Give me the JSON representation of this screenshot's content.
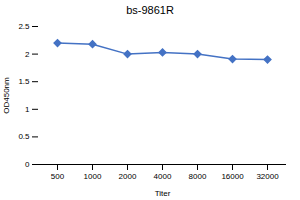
{
  "chart_data": {
    "type": "line",
    "title": "bs-9861R",
    "x_label": "Titer",
    "y_label": "OD450nm",
    "categories": [
      "500",
      "1000",
      "2000",
      "4000",
      "8000",
      "16000",
      "32000"
    ],
    "values": [
      2.2,
      2.18,
      2.0,
      2.03,
      2.0,
      1.91,
      1.9
    ],
    "color": "#4472c4",
    "marker": "diamond",
    "ylim": [
      0,
      2.5
    ],
    "yticks": [
      0,
      0.5,
      1,
      1.5,
      2,
      2.5
    ],
    "grid": false
  }
}
